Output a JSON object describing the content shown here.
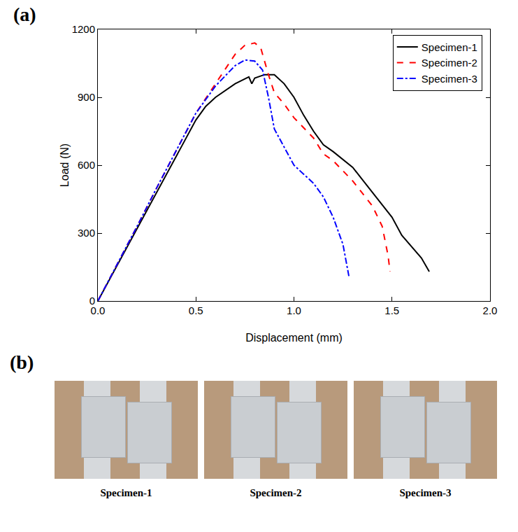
{
  "chart_data": {
    "type": "line",
    "x_label": "Displacement (mm)",
    "y_label": "Load (N)",
    "annotations": [
      "(a)"
    ],
    "xlim": [
      0,
      2.0
    ],
    "xticks": [
      {
        "value": 0,
        "label": "0.0"
      },
      0.5,
      {
        "value": 1,
        "label": "1.0"
      },
      1.5,
      {
        "value": 2,
        "label": "2.0"
      }
    ],
    "ylim": [
      0,
      1200
    ],
    "yticks": [
      0,
      300,
      600,
      900,
      1200
    ],
    "grid": false,
    "legend": "top right",
    "series": [
      {
        "name": "Specimen-1",
        "color": "#000000",
        "line_style": "solid",
        "x": [
          0,
          0.1,
          0.2,
          0.3,
          0.4,
          0.45,
          0.5,
          0.55,
          0.6,
          0.7,
          0.77,
          0.785,
          0.8,
          0.85,
          0.9,
          0.95,
          1.0,
          1.05,
          1.1,
          1.15,
          1.2,
          1.3,
          1.4,
          1.5,
          1.55,
          1.6,
          1.65,
          1.69
        ],
        "values": [
          0,
          160,
          320,
          480,
          640,
          720,
          800,
          860,
          900,
          960,
          990,
          960,
          985,
          1000,
          1000,
          960,
          900,
          820,
          750,
          690,
          660,
          590,
          480,
          370,
          290,
          240,
          190,
          130
        ]
      },
      {
        "name": "Specimen-2",
        "color": "#ff0000",
        "line_style": "dash",
        "x": [
          0,
          0.1,
          0.2,
          0.3,
          0.4,
          0.5,
          0.6,
          0.7,
          0.75,
          0.8,
          0.83,
          0.87,
          0.9,
          0.95,
          1.0,
          1.1,
          1.15,
          1.2,
          1.3,
          1.4,
          1.45,
          1.48,
          1.49
        ],
        "values": [
          0,
          165,
          330,
          500,
          665,
          830,
          960,
          1090,
          1130,
          1140,
          1120,
          1000,
          920,
          870,
          810,
          720,
          650,
          620,
          530,
          420,
          330,
          200,
          130
        ]
      },
      {
        "name": "Specimen-3",
        "color": "#0000ff",
        "line_style": "dashdot",
        "x": [
          0,
          0.1,
          0.2,
          0.3,
          0.4,
          0.5,
          0.6,
          0.7,
          0.75,
          0.8,
          0.84,
          0.87,
          0.9,
          0.95,
          1.0,
          1.05,
          1.1,
          1.15,
          1.2,
          1.25,
          1.28
        ],
        "values": [
          0,
          165,
          330,
          500,
          665,
          830,
          950,
          1040,
          1065,
          1060,
          1020,
          900,
          760,
          680,
          600,
          560,
          520,
          460,
          370,
          250,
          110
        ]
      }
    ]
  },
  "photos": {
    "label": "(b)",
    "captions": [
      "Specimen-1",
      "Specimen-2",
      "Specimen-3"
    ]
  }
}
